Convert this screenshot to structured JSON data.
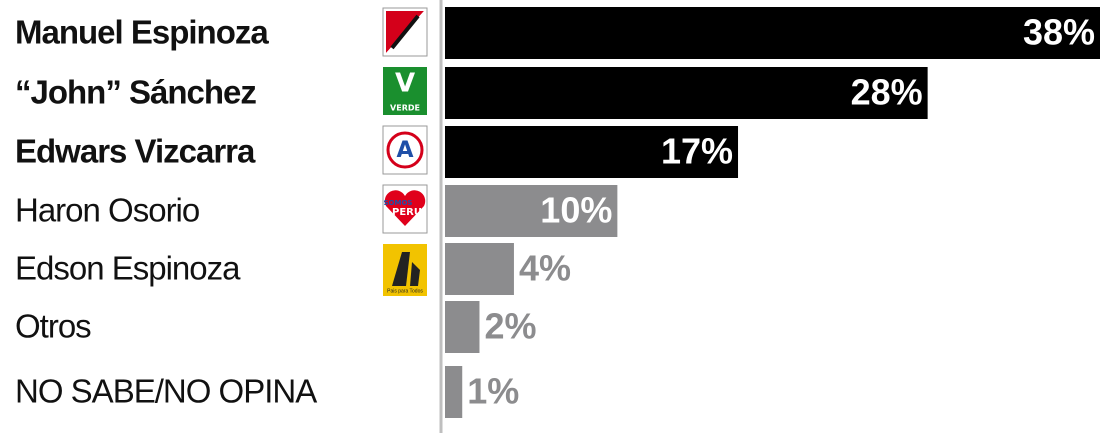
{
  "chart_data": {
    "type": "bar",
    "orientation": "horizontal",
    "categories": [
      "Manuel Espinoza",
      "“John” Sánchez",
      "Edwars Vizcarra",
      "Haron Osorio",
      "Edson Espinoza",
      "Otros",
      "NO SABE/NO OPINA"
    ],
    "values": [
      38,
      28,
      17,
      10,
      4,
      2,
      1
    ],
    "value_labels": [
      "38%",
      "28%",
      "17%",
      "10%",
      "4%",
      "2%",
      "1%"
    ],
    "colors": [
      "#000000",
      "#000000",
      "#000000",
      "#8c8c8e",
      "#8c8c8e",
      "#8c8c8e",
      "#8c8c8e"
    ],
    "bold": [
      true,
      true,
      true,
      false,
      false,
      false,
      false
    ],
    "xlim": [
      0,
      38
    ],
    "logo_labels": [
      "V",
      "VERDE",
      "A",
      "SOMOS",
      "PERU",
      "Pais para Todos"
    ]
  }
}
